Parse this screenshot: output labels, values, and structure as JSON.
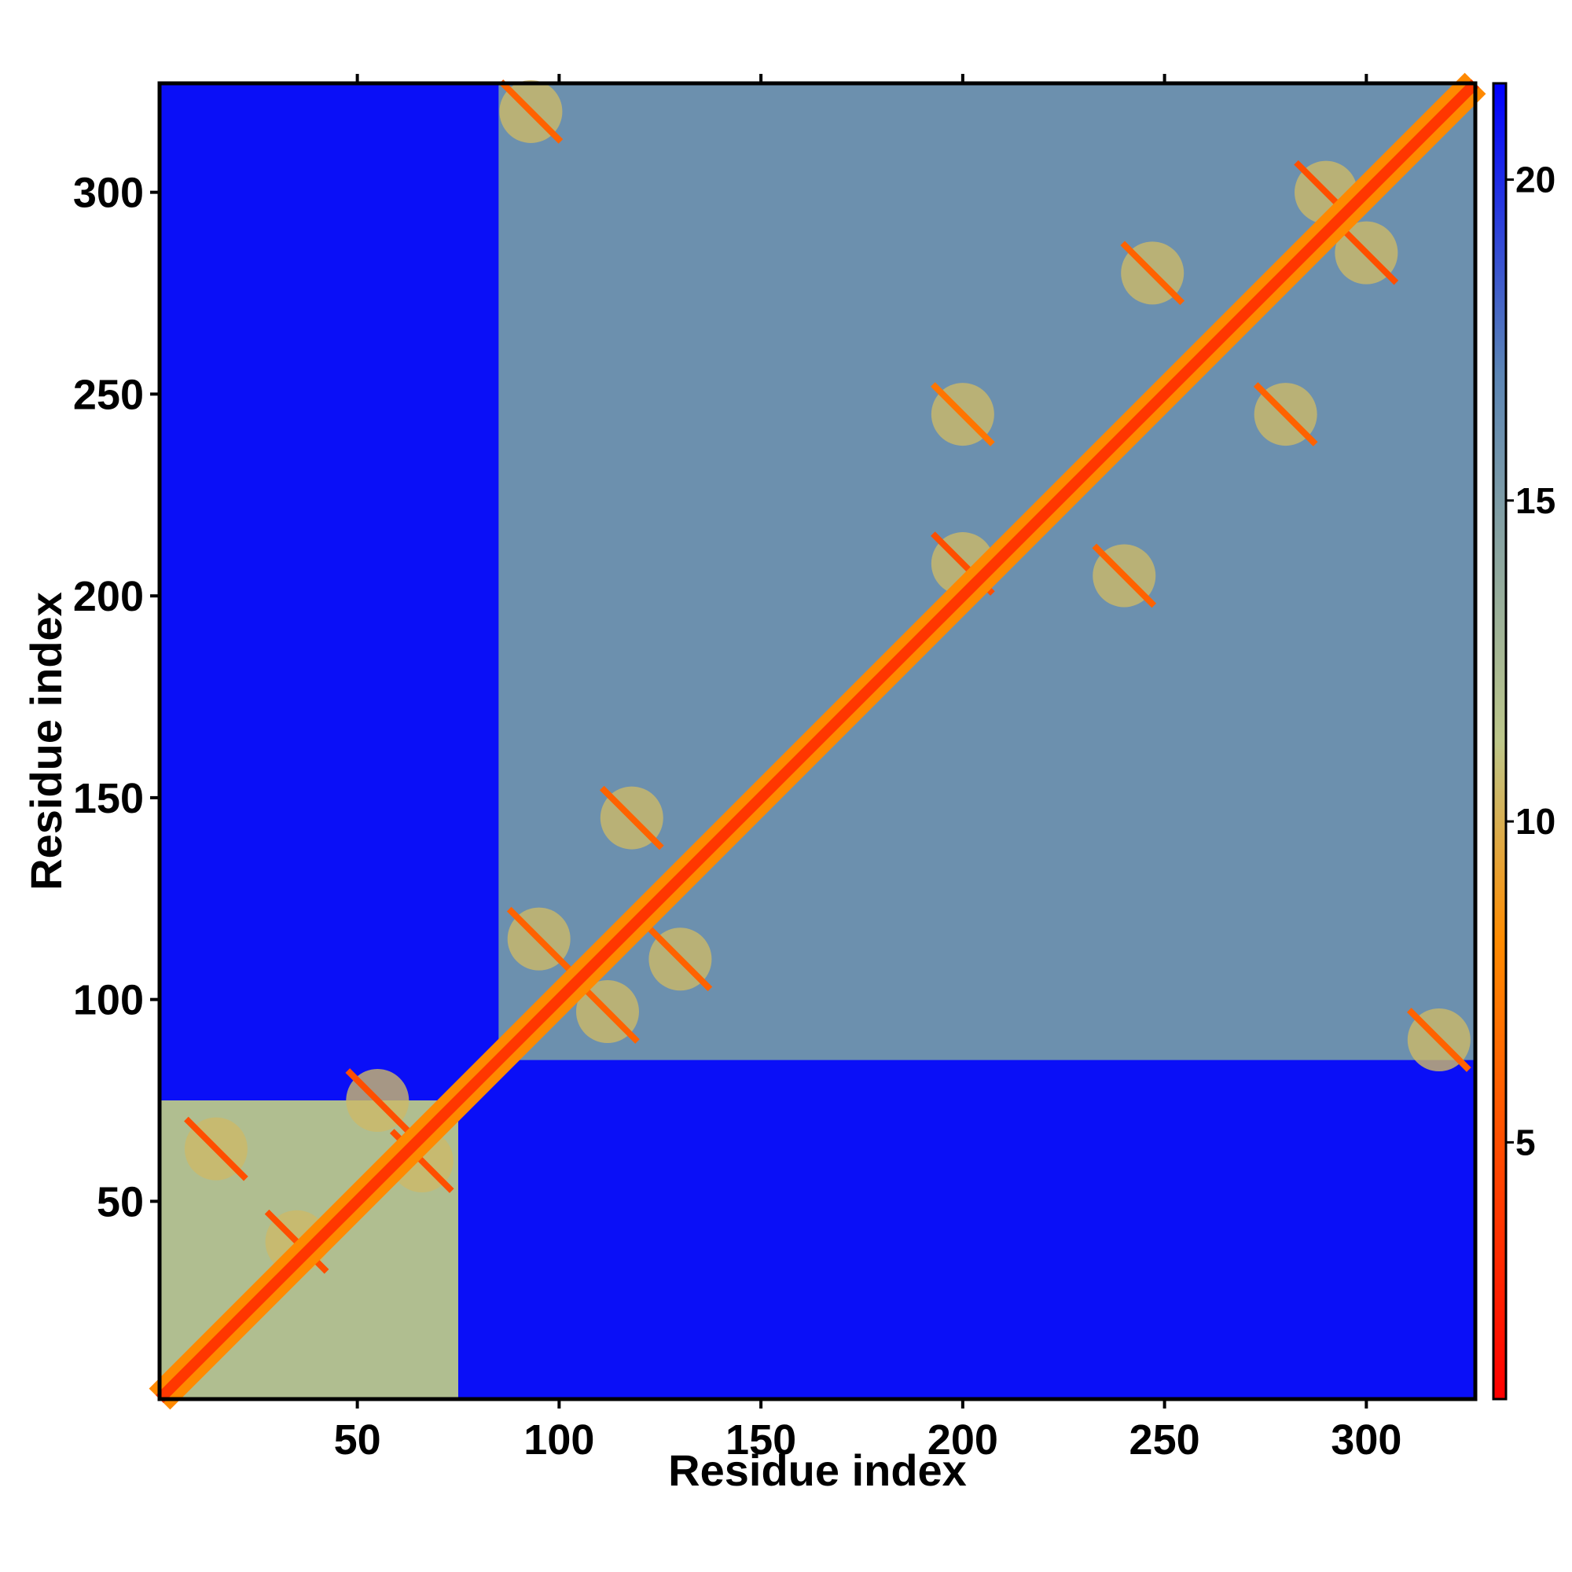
{
  "chart_data": {
    "type": "heatmap",
    "title": "",
    "xlabel": "Residue index",
    "ylabel": "Residue index",
    "xlim": [
      1,
      327
    ],
    "ylim": [
      1,
      327
    ],
    "x_ticks": [
      50,
      100,
      150,
      200,
      250,
      300
    ],
    "y_ticks": [
      50,
      100,
      150,
      200,
      250,
      300
    ],
    "colorbar": {
      "range": [
        1,
        21.5
      ],
      "ticks": [
        5,
        10,
        15,
        20
      ],
      "colors": [
        "#ff0000",
        "#ff8c00",
        "#bdc78a",
        "#5b85b5",
        "#0000ff"
      ],
      "stops": [
        0,
        0.35,
        0.5,
        0.78,
        1
      ]
    },
    "diagonal_distance": 3.8,
    "background_distance": 21,
    "domains": [
      {
        "start": 1,
        "end": 75,
        "intra_distance": 12
      },
      {
        "start": 85,
        "end": 327,
        "intra_distance": 16
      }
    ],
    "contacts": [
      {
        "x": 15,
        "y": 63,
        "distance": 5
      },
      {
        "x": 35,
        "y": 40,
        "distance": 5
      },
      {
        "x": 55,
        "y": 75,
        "distance": 5
      },
      {
        "x": 66,
        "y": 60,
        "distance": 5
      },
      {
        "x": 95,
        "y": 115,
        "distance": 6
      },
      {
        "x": 112,
        "y": 97,
        "distance": 6
      },
      {
        "x": 118,
        "y": 145,
        "distance": 6
      },
      {
        "x": 130,
        "y": 110,
        "distance": 6
      },
      {
        "x": 200,
        "y": 208,
        "distance": 5
      },
      {
        "x": 200,
        "y": 245,
        "distance": 7
      },
      {
        "x": 240,
        "y": 205,
        "distance": 6
      },
      {
        "x": 247,
        "y": 280,
        "distance": 6
      },
      {
        "x": 280,
        "y": 245,
        "distance": 6
      },
      {
        "x": 290,
        "y": 300,
        "distance": 5
      },
      {
        "x": 300,
        "y": 285,
        "distance": 5
      },
      {
        "x": 93,
        "y": 320,
        "distance": 6
      },
      {
        "x": 318,
        "y": 90,
        "distance": 6
      }
    ]
  }
}
